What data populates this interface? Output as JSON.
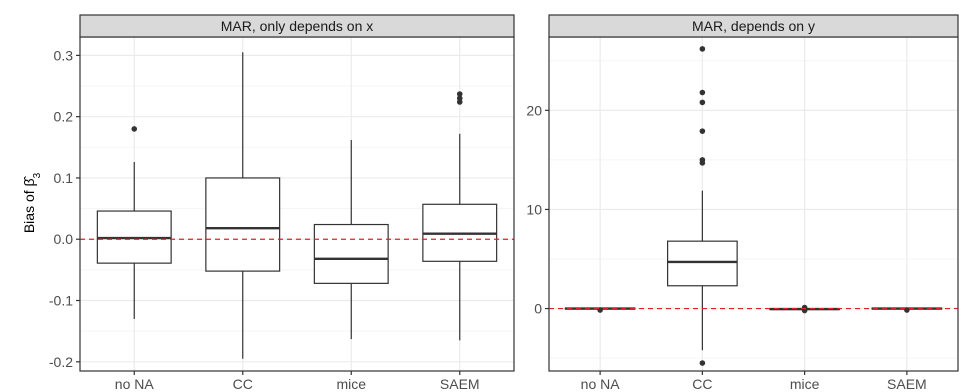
{
  "chart_data": [
    {
      "type": "boxplot",
      "title": "MAR, only depends on x",
      "ylabel": "Bias of β̂3",
      "ylim": [
        -0.215,
        0.33
      ],
      "yticks": [
        -0.2,
        -0.1,
        0.0,
        0.1,
        0.2,
        0.3
      ],
      "ytick_labels": [
        "-0.2",
        "-0.1",
        "0.0",
        "0.1",
        "0.2",
        "0.3"
      ],
      "reference_line": 0,
      "categories": [
        "no NA",
        "CC",
        "mice",
        "SAEM"
      ],
      "boxes": [
        {
          "category": "no NA",
          "whisker_low": -0.13,
          "q1": -0.039,
          "median": 0.002,
          "q3": 0.046,
          "whisker_high": 0.126,
          "outliers": [
            0.18
          ]
        },
        {
          "category": "CC",
          "whisker_low": -0.195,
          "q1": -0.052,
          "median": 0.018,
          "q3": 0.1,
          "whisker_high": 0.305,
          "outliers": []
        },
        {
          "category": "mice",
          "whisker_low": -0.163,
          "q1": -0.072,
          "median": -0.032,
          "q3": 0.024,
          "whisker_high": 0.162,
          "outliers": []
        },
        {
          "category": "SAEM",
          "whisker_low": -0.165,
          "q1": -0.036,
          "median": 0.009,
          "q3": 0.057,
          "whisker_high": 0.172,
          "outliers": [
            0.224,
            0.23,
            0.237
          ]
        }
      ]
    },
    {
      "type": "boxplot",
      "title": "MAR, depends on y",
      "ylim": [
        -6.3,
        27.4
      ],
      "yticks": [
        0,
        10,
        20
      ],
      "ytick_labels": [
        "0",
        "10",
        "20"
      ],
      "reference_line": 0,
      "categories": [
        "no NA",
        "CC",
        "mice",
        "SAEM"
      ],
      "boxes": [
        {
          "category": "no NA",
          "whisker_low": -0.1,
          "q1": -0.05,
          "median": 0.0,
          "q3": 0.05,
          "whisker_high": 0.1,
          "outliers": [
            -0.15
          ]
        },
        {
          "category": "CC",
          "whisker_low": -4.2,
          "q1": 2.3,
          "median": 4.7,
          "q3": 6.8,
          "whisker_high": 11.9,
          "outliers": [
            -5.5,
            14.7,
            15.0,
            17.9,
            20.8,
            21.8,
            26.2
          ]
        },
        {
          "category": "mice",
          "whisker_low": -0.15,
          "q1": -0.1,
          "median": -0.05,
          "q3": 0.0,
          "whisker_high": 0.05,
          "outliers": [
            -0.2,
            0.1
          ]
        },
        {
          "category": "SAEM",
          "whisker_low": -0.1,
          "q1": -0.05,
          "median": 0.0,
          "q3": 0.05,
          "whisker_high": 0.1,
          "outliers": [
            -0.15
          ]
        }
      ]
    }
  ],
  "colors": {
    "panel_border": "#333333",
    "strip_fill": "#d9d9d9",
    "grid_major": "#ebebeb",
    "grid_minor": "#f5f5f5",
    "box_line": "#333333",
    "outlier": "#333333",
    "reference_line": "#e0202a",
    "tick_text": "#4d4d4d"
  }
}
